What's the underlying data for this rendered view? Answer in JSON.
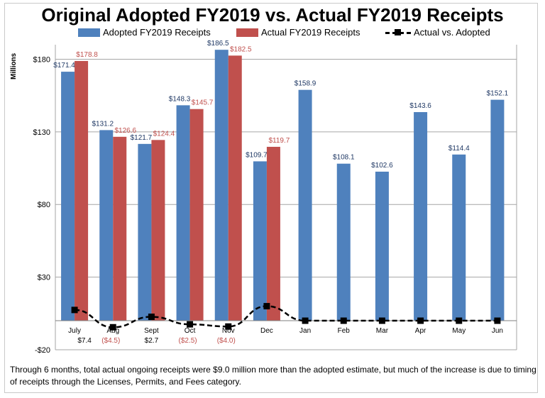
{
  "chart_data": {
    "type": "bar",
    "title": "Original Adopted FY2019 vs. Actual FY2019 Receipts",
    "ylabel": "Millions",
    "ylim": [
      -20,
      190
    ],
    "yticks": [
      -20,
      30,
      80,
      130,
      180
    ],
    "ytick_labels": [
      "-$20",
      "$30",
      "$80",
      "$130",
      "$180"
    ],
    "categories": [
      "July",
      "Aug",
      "Sept",
      "Oct",
      "Nov",
      "Dec",
      "Jan",
      "Feb",
      "Mar",
      "Apr",
      "May",
      "Jun"
    ],
    "series": [
      {
        "name": "Adopted FY2019 Receipts",
        "kind": "bar",
        "color": "#4f81bd",
        "label_color": "#1f3864",
        "values": [
          171.4,
          131.2,
          121.7,
          148.3,
          186.5,
          109.7,
          158.9,
          108.1,
          102.6,
          143.6,
          114.4,
          152.1
        ],
        "labels": [
          "$171.4",
          "$131.2",
          "$121.7",
          "$148.3",
          "$186.5",
          "$109.7",
          "$158.9",
          "$108.1",
          "$102.6",
          "$143.6",
          "$114.4",
          "$152.1"
        ]
      },
      {
        "name": "Actual FY2019 Receipts",
        "kind": "bar",
        "color": "#c0504d",
        "label_color": "#c0504d",
        "values": [
          178.8,
          126.6,
          124.4,
          145.7,
          182.5,
          119.7,
          null,
          null,
          null,
          null,
          null,
          null
        ],
        "labels": [
          "$178.8",
          "$126.6",
          "$124.4",
          "$145.7",
          "$182.5",
          "$119.7",
          "",
          "",
          "",
          "",
          "",
          ""
        ]
      },
      {
        "name": "Actual vs. Adopted",
        "kind": "line",
        "color": "#000000",
        "values": [
          7.4,
          -4.5,
          2.7,
          -2.5,
          -4.0,
          10.0,
          0,
          0,
          0,
          0,
          0,
          0
        ],
        "labels": [
          "$7.4",
          "($4.5)",
          "$2.7",
          "($2.5)",
          "($4.0)",
          "",
          "",
          "",
          "",
          "",
          "",
          ""
        ],
        "label_colors": [
          "#000000",
          "#c0504d",
          "#000000",
          "#c0504d",
          "#c0504d",
          "",
          "",
          "",
          "",
          "",
          "",
          ""
        ]
      }
    ],
    "legend_position": "top",
    "grid": true
  },
  "footnote": "Through 6 months, total actual ongoing receipts were $9.0 million more than the adopted estimate, but much of the increase is due to timing of receipts through the Licenses, Permits, and Fees category."
}
